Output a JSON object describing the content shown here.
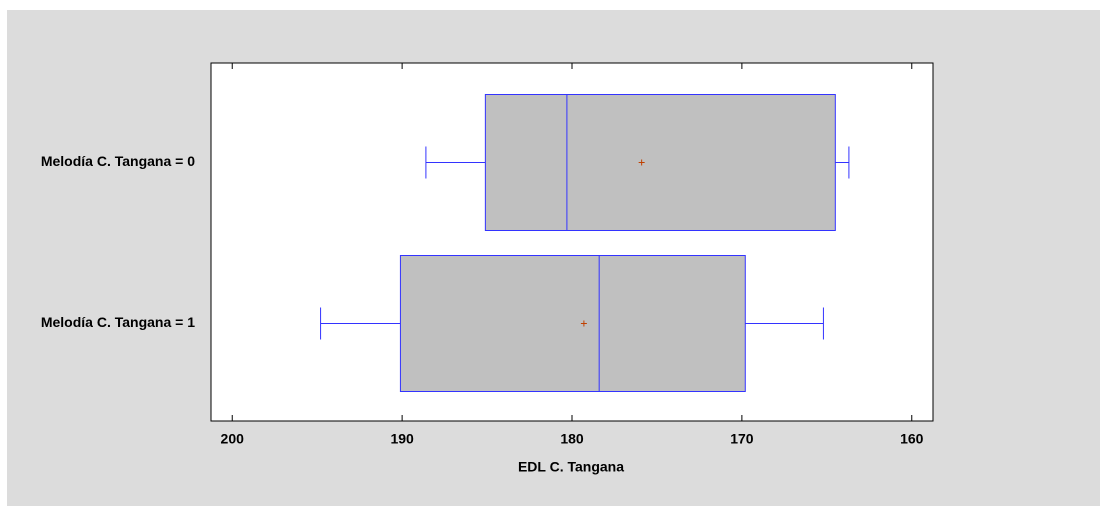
{
  "chart_data": {
    "type": "box",
    "x_label": "EDL C. Tangana",
    "categories": [
      "Melodía C. Tangana = 0",
      "Melodía C. Tangana = 1"
    ],
    "boxes": [
      {
        "max": 188.6,
        "q3": 185.1,
        "median": 180.3,
        "mean": 175.9,
        "q1": 164.5,
        "min": 163.7
      },
      {
        "max": 194.8,
        "q3": 190.1,
        "median": 178.4,
        "mean": 179.3,
        "q1": 169.8,
        "min": 165.2
      }
    ],
    "xlim": [
      201.25,
      158.75
    ],
    "xticks": [
      200,
      190,
      180,
      170,
      160
    ],
    "box_fill": "#c0c0c0",
    "box_stroke": "#3333ff",
    "mean_color": "#c04000"
  }
}
